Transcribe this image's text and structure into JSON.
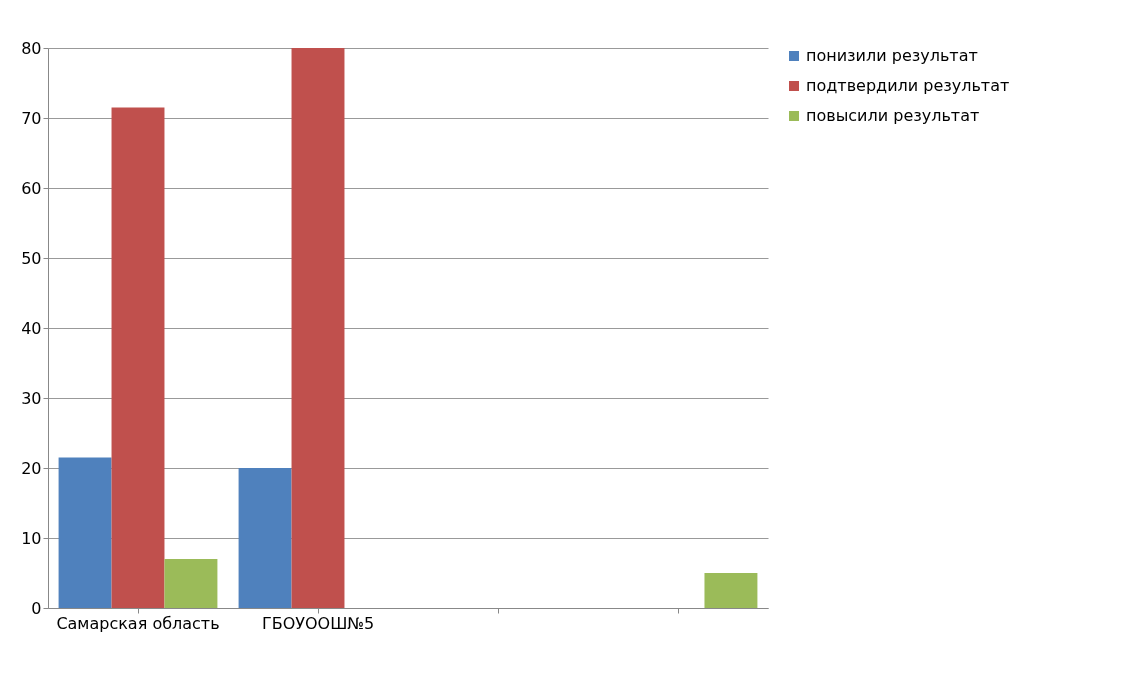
{
  "chart_data": {
    "type": "bar",
    "categories": [
      "Самарская область",
      "ГБОУООШ№5",
      null,
      null
    ],
    "series": [
      {
        "name": "понизили результат",
        "color": "#4f81bd",
        "values": [
          21.5,
          20,
          null,
          null
        ]
      },
      {
        "name": "подтвердили результат",
        "color": "#c0504d",
        "values": [
          71.5,
          80,
          null,
          null
        ]
      },
      {
        "name": "повысили результат",
        "color": "#9bbb59",
        "values": [
          7,
          0,
          null,
          5
        ]
      }
    ],
    "ylim": [
      0,
      80
    ],
    "yticks": [
      0,
      10,
      20,
      30,
      40,
      50,
      60,
      70,
      80
    ],
    "grid": "y",
    "legend": "right"
  }
}
